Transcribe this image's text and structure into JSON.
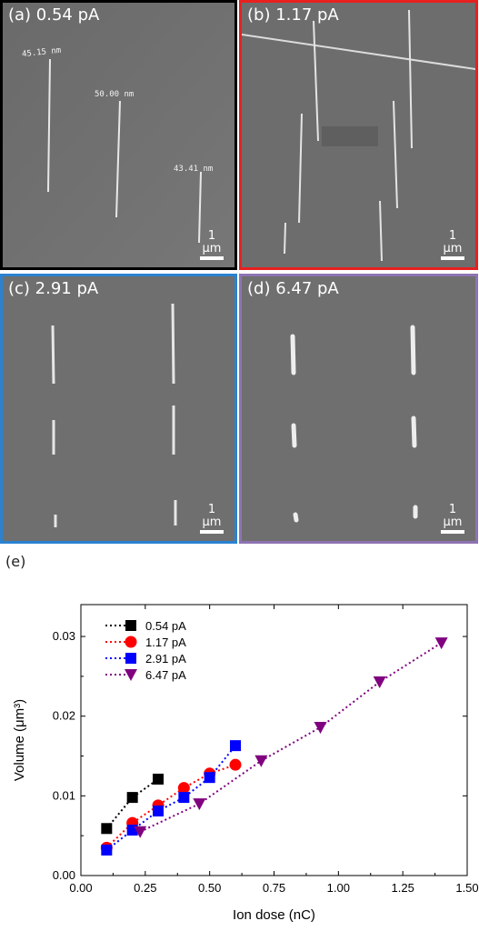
{
  "panels": [
    {
      "label": "(a) 0.54 pA",
      "border": "#000000",
      "measurements": [
        "45.15 nm",
        "50.00 nm",
        "43.41 nm"
      ]
    },
    {
      "label": "(b) 1.17 pA",
      "border": "#e8201f",
      "measurements": []
    },
    {
      "label": "(c) 2.91 pA",
      "border": "#2a82d0",
      "measurements": []
    },
    {
      "label": "(d) 6.47 pA",
      "border": "#8e73b3",
      "measurements": []
    }
  ],
  "scale_bar": "1 μm",
  "panel_e_label": "(e)",
  "chart_data": {
    "type": "scatter",
    "xlabel": "Ion dose (nC)",
    "ylabel": "Volume (μm³)",
    "xlim": [
      0.0,
      1.5
    ],
    "ylim": [
      0.0,
      0.034
    ],
    "xticks": [
      "0.00",
      "0.25",
      "0.50",
      "0.75",
      "1.00",
      "1.25",
      "1.50"
    ],
    "yticks": [
      "0.00",
      "0.01",
      "0.02",
      "0.03"
    ],
    "legend_position": "top-left",
    "series": [
      {
        "name": "0.54 pA",
        "color": "#000000",
        "marker": "square",
        "x": [
          0.1,
          0.2,
          0.3
        ],
        "y": [
          0.0059,
          0.0098,
          0.0121
        ]
      },
      {
        "name": "1.17 pA",
        "color": "#ff0000",
        "marker": "circle",
        "x": [
          0.1,
          0.2,
          0.3,
          0.4,
          0.5,
          0.6
        ],
        "y": [
          0.0035,
          0.0066,
          0.0088,
          0.011,
          0.0128,
          0.0139
        ]
      },
      {
        "name": "2.91 pA",
        "color": "#0000ff",
        "marker": "square",
        "x": [
          0.1,
          0.2,
          0.3,
          0.4,
          0.5,
          0.6
        ],
        "y": [
          0.0032,
          0.0057,
          0.0081,
          0.0098,
          0.0123,
          0.0163
        ]
      },
      {
        "name": "6.47 pA",
        "color": "#800080",
        "marker": "triangle-down",
        "x": [
          0.23,
          0.46,
          0.7,
          0.93,
          1.16,
          1.4
        ],
        "y": [
          0.0055,
          0.009,
          0.0144,
          0.0186,
          0.0243,
          0.0292
        ]
      }
    ]
  }
}
